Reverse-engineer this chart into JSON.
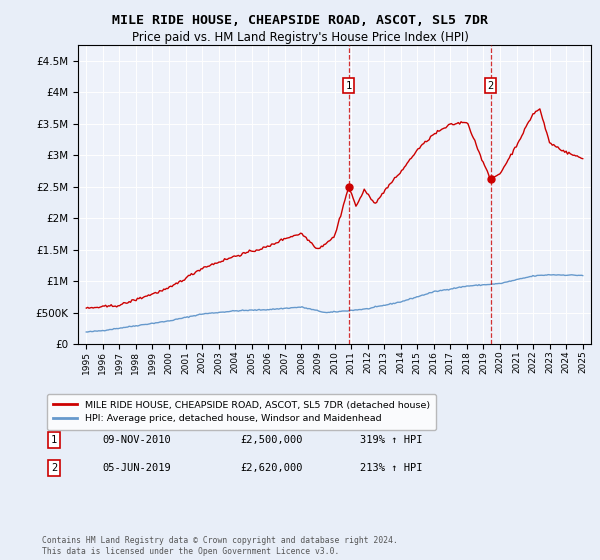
{
  "title": "MILE RIDE HOUSE, CHEAPSIDE ROAD, ASCOT, SL5 7DR",
  "subtitle": "Price paid vs. HM Land Registry's House Price Index (HPI)",
  "legend_line1": "MILE RIDE HOUSE, CHEAPSIDE ROAD, ASCOT, SL5 7DR (detached house)",
  "legend_line2": "HPI: Average price, detached house, Windsor and Maidenhead",
  "footer": "Contains HM Land Registry data © Crown copyright and database right 2024.\nThis data is licensed under the Open Government Licence v3.0.",
  "annotation1": {
    "label": "1",
    "date": "09-NOV-2010",
    "price": "£2,500,000",
    "hpi": "319% ↑ HPI",
    "year": 2010.86
  },
  "annotation2": {
    "label": "2",
    "date": "05-JUN-2019",
    "price": "£2,620,000",
    "hpi": "213% ↑ HPI",
    "year": 2019.43
  },
  "sale1_value": 2500000,
  "sale2_value": 2620000,
  "ylim_max": 4750000,
  "xlim_start": 1994.5,
  "xlim_end": 2025.5,
  "red_color": "#cc0000",
  "blue_color": "#6699cc",
  "background_color": "#e8eef8",
  "plot_bg": "#eef2fa"
}
